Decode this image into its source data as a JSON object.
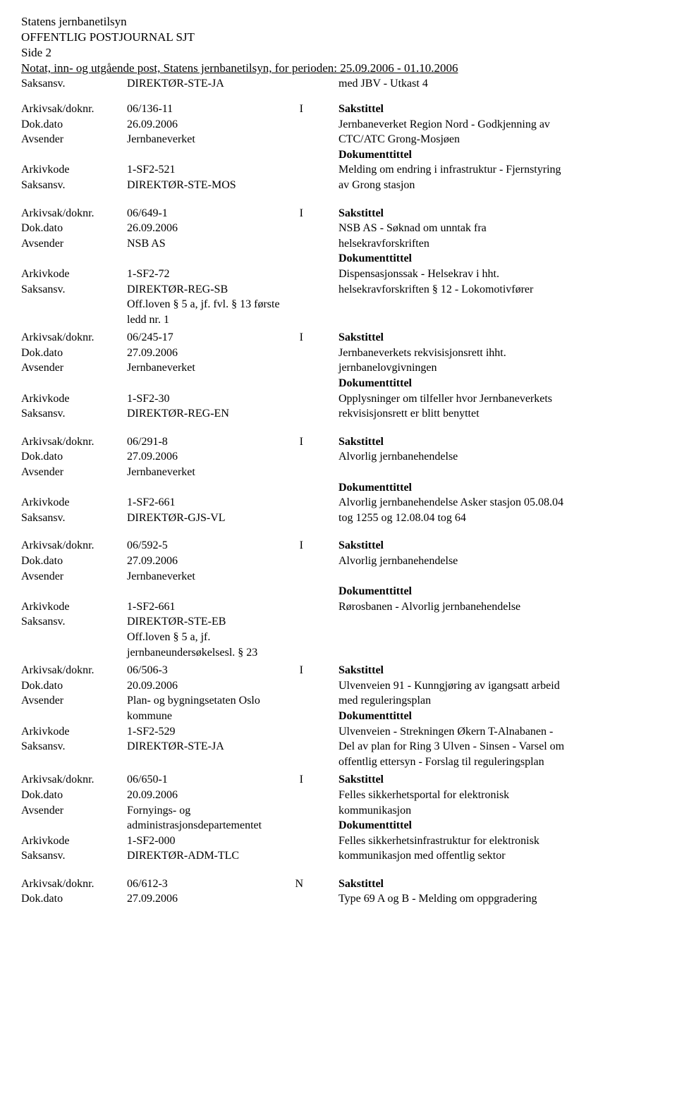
{
  "header": {
    "org": "Statens jernbanetilsyn",
    "journal": "OFFENTLIG POSTJOURNAL SJT",
    "side": "Side 2",
    "notat": "Notat, inn- og utgående post, Statens jernbanetilsyn, for perioden: 25.09.2006 - 01.10.2006"
  },
  "labels": {
    "saksansv": "Saksansv.",
    "arkivsak": "Arkivsak/doknr.",
    "dokdato": "Dok.dato",
    "avsender": "Avsender",
    "arkivkode": "Arkivkode",
    "sakstittel": "Sakstittel",
    "dokumenttittel": "Dokumenttittel"
  },
  "top": {
    "saksansv_val": "DIREKTØR-STE-JA",
    "right": "med JBV - Utkast 4"
  },
  "r1": {
    "arkivsak": "06/136-11",
    "io": "I",
    "dato": "26.09.2006",
    "avsender": "Jernbaneverket",
    "arkivkode": "1-SF2-521",
    "saksansv": "DIREKTØR-STE-MOS",
    "st1": "Jernbaneverket Region Nord - Godkjenning av",
    "st2": "CTC/ATC Grong-Mosjøen",
    "dt1": "Melding om endring i infrastruktur - Fjernstyring",
    "dt2": "av Grong stasjon"
  },
  "r2": {
    "arkivsak": "06/649-1",
    "io": "I",
    "dato": "26.09.2006",
    "avsender": "NSB AS",
    "arkivkode": "1-SF2-72",
    "saksansv": "DIREKTØR-REG-SB",
    "off1": "Off.loven § 5 a, jf. fvl. § 13 første",
    "off2": "ledd nr. 1",
    "st1": "NSB AS - Søknad om unntak fra",
    "st2": "helsekravforskriften",
    "dt1": "Dispensasjonssak - Helsekrav i hht.",
    "dt2": "helsekravforskriften § 12 - Lokomotivfører"
  },
  "r3": {
    "arkivsak": "06/245-17",
    "io": "I",
    "dato": "27.09.2006",
    "avsender": "Jernbaneverket",
    "arkivkode": "1-SF2-30",
    "saksansv": "DIREKTØR-REG-EN",
    "st1": "Jernbaneverkets rekvisisjonsrett ihht.",
    "st2": "jernbanelovgivningen",
    "dt1": "Opplysninger om tilfeller hvor Jernbaneverkets",
    "dt2": "rekvisisjonsrett er blitt benyttet"
  },
  "r4": {
    "arkivsak": "06/291-8",
    "io": "I",
    "dato": "27.09.2006",
    "avsender": "Jernbaneverket",
    "arkivkode": "1-SF2-661",
    "saksansv": "DIREKTØR-GJS-VL",
    "st1": "Alvorlig jernbanehendelse",
    "dt1": "Alvorlig jernbanehendelse Asker stasjon 05.08.04",
    "dt2": "tog 1255 og 12.08.04 tog 64"
  },
  "r5": {
    "arkivsak": "06/592-5",
    "io": "I",
    "dato": "27.09.2006",
    "avsender": "Jernbaneverket",
    "arkivkode": "1-SF2-661",
    "saksansv": "DIREKTØR-STE-EB",
    "off1": "Off.loven § 5 a, jf.",
    "off2": "jernbaneundersøkelsesl. § 23",
    "st1": "Alvorlig jernbanehendelse",
    "dt1": "Rørosbanen - Alvorlig jernbanehendelse"
  },
  "r6": {
    "arkivsak": "06/506-3",
    "io": "I",
    "dato": "20.09.2006",
    "avsender1": "Plan- og bygningsetaten Oslo",
    "avsender2": "kommune",
    "arkivkode": "1-SF2-529",
    "saksansv": "DIREKTØR-STE-JA",
    "st1": "Ulvenveien 91 - Kunngjøring av igangsatt arbeid",
    "st2": "med reguleringsplan",
    "dt1": "Ulvenveien - Strekningen Økern T-Alnabanen -",
    "dt2": "Del av plan for Ring 3 Ulven - Sinsen - Varsel om",
    "dt3": "offentlig ettersyn - Forslag til reguleringsplan"
  },
  "r7": {
    "arkivsak": "06/650-1",
    "io": "I",
    "dato": "20.09.2006",
    "avsender1": "Fornyings- og",
    "avsender2": "administrasjonsdepartementet",
    "arkivkode": "1-SF2-000",
    "saksansv": "DIREKTØR-ADM-TLC",
    "st1": "Felles sikkerhetsportal for elektronisk",
    "st2": "kommunikasjon",
    "dt1": "Felles sikkerhetsinfrastruktur for elektronisk",
    "dt2": "kommunikasjon med offentlig sektor"
  },
  "r8": {
    "arkivsak": "06/612-3",
    "io": "N",
    "dato": "27.09.2006",
    "st1": "Type 69 A og B - Melding om oppgradering"
  }
}
